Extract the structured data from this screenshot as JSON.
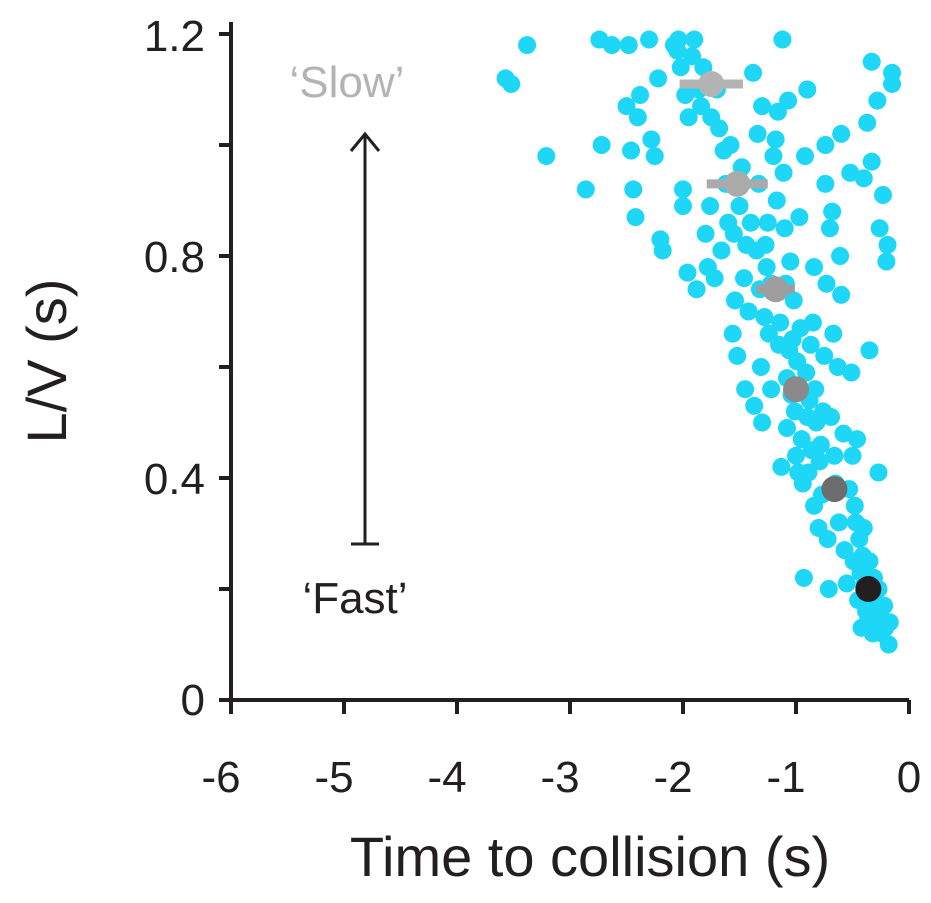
{
  "chart_data": {
    "type": "scatter",
    "xlabel": "Time to collision (s)",
    "ylabel": "L/V (s)",
    "xlim": [
      -6,
      0
    ],
    "ylim": [
      0,
      1.2
    ],
    "x_ticks": [
      "-6",
      "-5",
      "-4",
      "-3",
      "-2",
      "-1",
      "0"
    ],
    "y_ticks": [
      "0",
      "0.4",
      "0.8",
      "1.2"
    ],
    "grid": false,
    "annotations": {
      "slow_label": "‘Slow’",
      "fast_label": "‘Fast’"
    },
    "colors": {
      "points": "#1ed6f5",
      "axis": "#231f20",
      "slow": "#b3b3b3",
      "fast": "#231f20"
    },
    "scatter_points": [
      [
        -3.57,
        1.12
      ],
      [
        -3.52,
        1.11
      ],
      [
        -3.38,
        1.18
      ],
      [
        -3.21,
        0.98
      ],
      [
        -2.86,
        0.92
      ],
      [
        -2.74,
        1.19
      ],
      [
        -2.72,
        1.0
      ],
      [
        -2.63,
        1.18
      ],
      [
        -2.5,
        1.07
      ],
      [
        -2.48,
        1.18
      ],
      [
        -2.46,
        0.99
      ],
      [
        -2.44,
        0.92
      ],
      [
        -2.42,
        0.87
      ],
      [
        -2.4,
        1.05
      ],
      [
        -2.38,
        1.09
      ],
      [
        -2.3,
        1.19
      ],
      [
        -2.28,
        1.01
      ],
      [
        -2.25,
        0.98
      ],
      [
        -2.22,
        1.12
      ],
      [
        -2.2,
        0.83
      ],
      [
        -2.18,
        0.81
      ],
      [
        -2.08,
        1.18
      ],
      [
        -2.05,
        1.17
      ],
      [
        -2.04,
        1.19
      ],
      [
        -2.02,
        1.14
      ],
      [
        -2.0,
        0.92
      ],
      [
        -2.0,
        0.89
      ],
      [
        -1.98,
        1.09
      ],
      [
        -1.96,
        0.77
      ],
      [
        -1.95,
        1.05
      ],
      [
        -1.92,
        1.16
      ],
      [
        -1.9,
        1.19
      ],
      [
        -1.88,
        0.74
      ],
      [
        -1.86,
        1.1
      ],
      [
        -1.84,
        1.07
      ],
      [
        -1.82,
        1.14
      ],
      [
        -1.8,
        0.84
      ],
      [
        -1.78,
        0.78
      ],
      [
        -1.76,
        0.89
      ],
      [
        -1.75,
        1.05
      ],
      [
        -1.72,
        0.76
      ],
      [
        -1.7,
        1.1
      ],
      [
        -1.68,
        1.03
      ],
      [
        -1.66,
        0.81
      ],
      [
        -1.64,
        0.99
      ],
      [
        -1.62,
        0.93
      ],
      [
        -1.6,
        0.86
      ],
      [
        -1.58,
        1.0
      ],
      [
        -1.56,
        0.66
      ],
      [
        -1.55,
        0.84
      ],
      [
        -1.54,
        0.72
      ],
      [
        -1.52,
        0.62
      ],
      [
        -1.5,
        0.89
      ],
      [
        -1.48,
        0.96
      ],
      [
        -1.46,
        0.76
      ],
      [
        -1.45,
        0.56
      ],
      [
        -1.44,
        0.82
      ],
      [
        -1.42,
        0.7
      ],
      [
        -1.4,
        0.86
      ],
      [
        -1.38,
        1.13
      ],
      [
        -1.37,
        0.53
      ],
      [
        -1.35,
        0.81
      ],
      [
        -1.34,
        1.02
      ],
      [
        -1.33,
        0.93
      ],
      [
        -1.32,
        0.74
      ],
      [
        -1.31,
        0.6
      ],
      [
        -1.3,
        0.5
      ],
      [
        -1.3,
        1.07
      ],
      [
        -1.28,
        0.69
      ],
      [
        -1.27,
        0.82
      ],
      [
        -1.26,
        0.78
      ],
      [
        -1.25,
        0.86
      ],
      [
        -1.24,
        0.66
      ],
      [
        -1.22,
        0.56
      ],
      [
        -1.22,
        0.75
      ],
      [
        -1.2,
        0.98
      ],
      [
        -1.18,
        1.01
      ],
      [
        -1.17,
        0.9
      ],
      [
        -1.16,
        1.06
      ],
      [
        -1.15,
        0.64
      ],
      [
        -1.14,
        0.68
      ],
      [
        -1.13,
        0.42
      ],
      [
        -1.12,
        1.19
      ],
      [
        -1.11,
        0.95
      ],
      [
        -1.1,
        0.85
      ],
      [
        -1.09,
        0.75
      ],
      [
        -1.08,
        0.58
      ],
      [
        -1.08,
        0.49
      ],
      [
        -1.07,
        1.08
      ],
      [
        -1.06,
        0.63
      ],
      [
        -1.05,
        0.79
      ],
      [
        -1.04,
        0.55
      ],
      [
        -1.03,
        0.65
      ],
      [
        -1.02,
        0.72
      ],
      [
        -1.01,
        0.52
      ],
      [
        -1.0,
        0.44
      ],
      [
        -0.99,
        0.61
      ],
      [
        -0.98,
        0.41
      ],
      [
        -0.97,
        0.87
      ],
      [
        -0.96,
        0.67
      ],
      [
        -0.95,
        0.47
      ],
      [
        -0.94,
        0.39
      ],
      [
        -0.93,
        0.22
      ],
      [
        -0.92,
        0.98
      ],
      [
        -0.91,
        0.59
      ],
      [
        -0.9,
        0.51
      ],
      [
        -0.89,
        0.41
      ],
      [
        -0.88,
        0.54
      ],
      [
        -0.87,
        0.64
      ],
      [
        -0.86,
        0.45
      ],
      [
        -0.85,
        0.68
      ],
      [
        -0.84,
        0.35
      ],
      [
        -0.83,
        0.56
      ],
      [
        -0.82,
        0.5
      ],
      [
        -0.8,
        0.31
      ],
      [
        -0.79,
        0.43
      ],
      [
        -0.78,
        0.46
      ],
      [
        -0.77,
        0.37
      ],
      [
        -0.76,
        0.52
      ],
      [
        -0.75,
        0.62
      ],
      [
        -0.74,
        1.0
      ],
      [
        -0.73,
        0.75
      ],
      [
        -0.72,
        0.29
      ],
      [
        -0.71,
        0.2
      ],
      [
        -0.7,
        0.85
      ],
      [
        -0.69,
        0.51
      ],
      [
        -0.68,
        0.88
      ],
      [
        -0.67,
        0.66
      ],
      [
        -0.66,
        0.44
      ],
      [
        -0.65,
        0.39
      ],
      [
        -0.63,
        0.6
      ],
      [
        -0.62,
        0.32
      ],
      [
        -0.61,
        0.8
      ],
      [
        -0.6,
        0.73
      ],
      [
        -0.58,
        0.48
      ],
      [
        -0.57,
        0.27
      ],
      [
        -0.55,
        0.21
      ],
      [
        -0.53,
        0.38
      ],
      [
        -0.52,
        0.95
      ],
      [
        -0.51,
        0.59
      ],
      [
        -0.5,
        0.44
      ],
      [
        -0.49,
        0.25
      ],
      [
        -0.48,
        0.35
      ],
      [
        -0.47,
        0.32
      ],
      [
        -0.46,
        0.47
      ],
      [
        -0.45,
        0.18
      ],
      [
        -0.44,
        0.29
      ],
      [
        -0.43,
        0.23
      ],
      [
        -0.42,
        0.13
      ],
      [
        -0.41,
        0.26
      ],
      [
        -0.4,
        0.31
      ],
      [
        -0.39,
        0.21
      ],
      [
        -0.38,
        0.16
      ],
      [
        -0.37,
        1.04
      ],
      [
        -0.36,
        0.15
      ],
      [
        -0.35,
        0.25
      ],
      [
        -0.34,
        0.19
      ],
      [
        -0.33,
        0.97
      ],
      [
        -0.32,
        0.12
      ],
      [
        -0.31,
        0.22
      ],
      [
        -0.3,
        0.17
      ],
      [
        -0.29,
        0.13
      ],
      [
        -0.28,
        1.08
      ],
      [
        -0.27,
        0.2
      ],
      [
        -0.26,
        0.85
      ],
      [
        -0.25,
        0.15
      ],
      [
        -0.24,
        0.12
      ],
      [
        -0.23,
        0.91
      ],
      [
        -0.22,
        0.17
      ],
      [
        -0.21,
        0.13
      ],
      [
        -0.2,
        0.79
      ],
      [
        -0.19,
        0.82
      ],
      [
        -0.18,
        0.1
      ],
      [
        -0.17,
        0.14
      ],
      [
        -0.35,
        0.63
      ],
      [
        -0.27,
        0.41
      ],
      [
        -0.15,
        1.11
      ],
      [
        -0.33,
        1.15
      ],
      [
        -0.6,
        1.02
      ],
      [
        -0.9,
        1.1
      ],
      [
        -0.74,
        0.93
      ],
      [
        -0.84,
        0.78
      ],
      [
        -0.4,
        0.94
      ],
      [
        -0.15,
        1.13
      ]
    ],
    "mean_series": [
      {
        "x": -1.75,
        "y": 1.11,
        "xerr": 0.28,
        "color": "#b3b3b3"
      },
      {
        "x": -1.52,
        "y": 0.93,
        "xerr": 0.27,
        "color": "#aaaaaa"
      },
      {
        "x": -1.18,
        "y": 0.74,
        "xerr": 0.17,
        "color": "#9e9e9e"
      },
      {
        "x": -1.0,
        "y": 0.56,
        "xerr": 0.07,
        "color": "#8a8a8a"
      },
      {
        "x": -0.66,
        "y": 0.38,
        "xerr": 0.06,
        "color": "#6d6d6d"
      },
      {
        "x": -0.36,
        "y": 0.2,
        "xerr": 0.04,
        "color": "#231f20"
      }
    ]
  }
}
